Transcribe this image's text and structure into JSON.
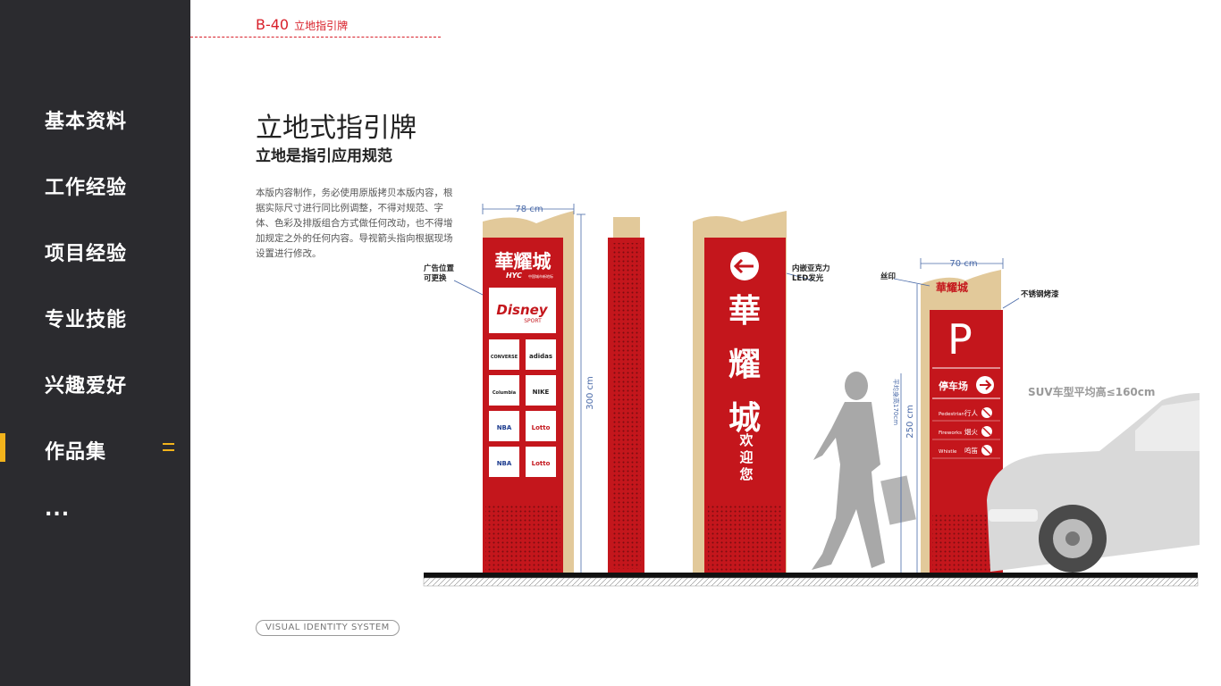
{
  "sidebar": {
    "items": [
      {
        "label": "基本资料"
      },
      {
        "label": "工作经验"
      },
      {
        "label": "项目经验"
      },
      {
        "label": "专业技能"
      },
      {
        "label": "兴趣爱好"
      },
      {
        "label": "作品集",
        "active": true
      },
      {
        "label": "..."
      }
    ],
    "accent_color": "#f2b31c",
    "background_color": "#2b2b2f"
  },
  "header": {
    "page_code": "B-40",
    "page_label": "立地指引牌"
  },
  "main": {
    "title": "立地式指引牌",
    "subtitle": "立地是指引应用规范",
    "description": "本版内容制作，务必使用原版拷贝本版内容，根据实际尺寸进行同比例调整，不得对规范、字体、色彩及排版组合方式做任何改动，也不得增加规定之外的任何内容。导视箭头指向根据现场设置进行修改。",
    "footer_badge": "VISUAL IDENTITY SYSTEM"
  },
  "drawing": {
    "brand_color": "#c4161c",
    "frame_color": "#e2c99a",
    "dim_width_1": "78 cm",
    "dim_height_1": "300 cm",
    "dim_width_2": "70 cm",
    "dim_height_2": "250 cm",
    "label_ad": "广告位置",
    "label_ad_2": "可更换",
    "label_led": "内嵌亚克力",
    "label_led_2": "LED发光",
    "label_silk": "丝印",
    "label_steel": "不锈钢烤漆",
    "person_height": "平均身高170cm",
    "suv_note": "SUV车型平均高≤160cm",
    "brand_name": "華耀城",
    "brand_sub": "HYC",
    "brand_sub2": "中国城市新地标",
    "logos": [
      "CONVERSE",
      "adidas",
      "Columbia",
      "NIKE",
      "NBA",
      "Lotto",
      "NBA",
      "Lotto"
    ],
    "disney": "Disney",
    "disney_sub": "SPORT",
    "welcome": "欢迎您",
    "parking_letter": "P",
    "parking_label": "停车场",
    "rows": [
      {
        "en": "Pedestrian",
        "cn": "行人"
      },
      {
        "en": "Fireworks",
        "cn": "烟火"
      },
      {
        "en": "Whistle",
        "cn": "鸣笛"
      }
    ]
  }
}
